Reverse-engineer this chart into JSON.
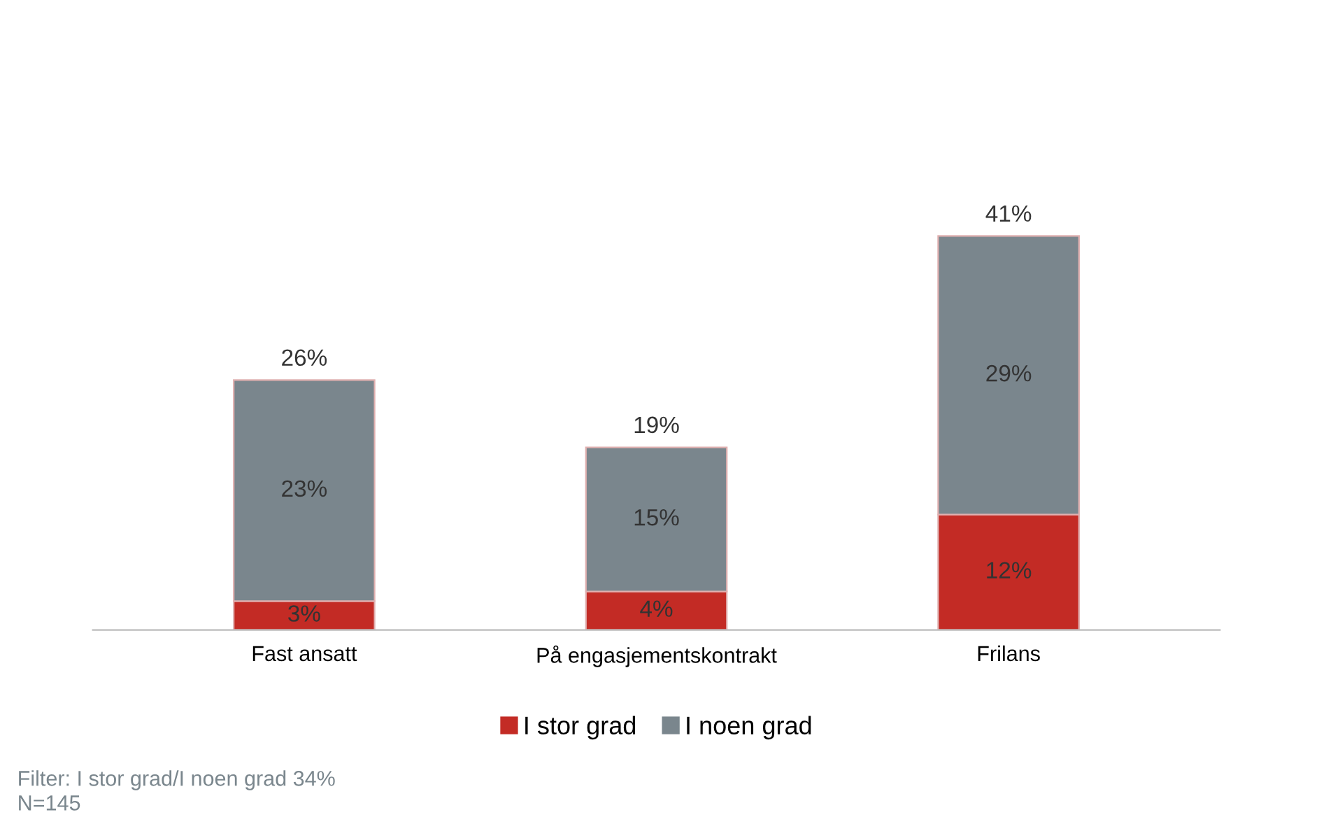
{
  "chart_data": {
    "type": "bar",
    "stacked": true,
    "categories": [
      "Fast ansatt",
      "På engasjementskontrakt",
      "Frilans"
    ],
    "series": [
      {
        "name": "I stor grad",
        "color": "#c32b25",
        "values": [
          3,
          4,
          12
        ],
        "value_labels": [
          "3%",
          "4%",
          "12%"
        ]
      },
      {
        "name": "I noen grad",
        "color": "#7a868d",
        "values": [
          23,
          15,
          29
        ],
        "value_labels": [
          "23%",
          "15%",
          "29%"
        ]
      }
    ],
    "totals": [
      "26%",
      "19%",
      "41%"
    ],
    "legend": "bottom",
    "grid": false,
    "tick_labels": "x",
    "annotations": [
      "Filter: I stor grad/I noen grad 34%",
      "N=145"
    ]
  }
}
